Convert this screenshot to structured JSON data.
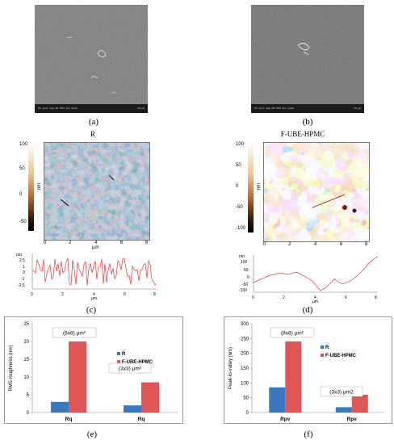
{
  "panel_labels": {
    "a": "(a)",
    "b": "(b)",
    "c": "(c)",
    "d": "(d)",
    "e": "(e)",
    "f": "(f)"
  },
  "sem": {
    "scale_label_a": "10 µm",
    "scale_label_b": "10 µm",
    "info_a": "HV  spot  mag  WD  HFW  det  mode",
    "info_b": "HV  spot  mag  WD  HFW  det  mode"
  },
  "afm": {
    "title_left": "R",
    "title_right": "F-UBE-HPMC",
    "cbar_left": [
      "100",
      "50",
      "0",
      "-50"
    ],
    "cbar_right": [
      "100",
      "50",
      "0",
      "-50",
      "-100"
    ],
    "cbar_unit": "nm",
    "map_ticks": [
      "0",
      "2",
      "4",
      "6",
      "8"
    ],
    "map_unit": "µm",
    "profile_left_y": [
      "nm",
      "2.5",
      "1",
      "0",
      "-1",
      "-2.5"
    ],
    "profile_right_y": [
      "nm",
      "100",
      "50",
      "0",
      "-50",
      "-100"
    ],
    "profile_x": [
      "0",
      "2",
      "4",
      "6",
      "8"
    ],
    "profile_xunit": "µm"
  },
  "colors": {
    "series_R": "#3b78c1",
    "series_F": "#e05656",
    "afm_blue": "#3d6fa8",
    "afm_orange": "#e6a36a"
  },
  "chart_data": [
    {
      "type": "bar",
      "title": "",
      "xlabel": "",
      "ylabel": "RMS roughness (nm)",
      "categories": [
        "Rq",
        "Rq"
      ],
      "series": [
        {
          "name": "R",
          "values": [
            3,
            2
          ]
        },
        {
          "name": "F-UBE-HPMC",
          "values": [
            20,
            8.5
          ]
        }
      ],
      "ylim": [
        0,
        25
      ],
      "yticks": [
        "0",
        "5",
        "10",
        "15",
        "20",
        "25"
      ],
      "annotations": [
        "(8x8) µm²",
        "(3x3) µm²"
      ],
      "legend": "right"
    },
    {
      "type": "bar",
      "title": "",
      "xlabel": "",
      "ylabel": "Peak-to-valley (nm)",
      "categories": [
        "Rpv",
        "Rpv"
      ],
      "series": [
        {
          "name": "R",
          "values": [
            85,
            18
          ]
        },
        {
          "name": "F-UBE-HPMC",
          "values": [
            240,
            60
          ]
        }
      ],
      "ylim": [
        0,
        300
      ],
      "yticks": [
        "0",
        "50",
        "100",
        "150",
        "200",
        "250",
        "300"
      ],
      "annotations": [
        "(8x8) µm²",
        "(3x3) µm2"
      ],
      "legend": "right"
    }
  ]
}
